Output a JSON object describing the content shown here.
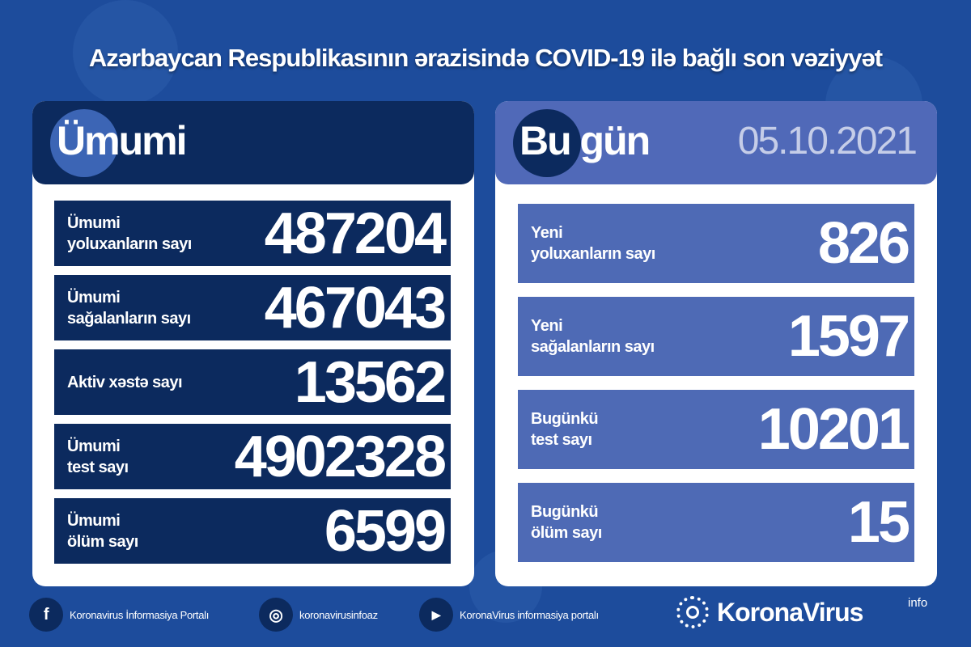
{
  "title": "Azərbaycan Respublikasının ərazisində COVID-19 ilə bağlı son vəziyyət",
  "total": {
    "heading": "Ümumi",
    "rows": [
      {
        "label1": "Ümumi",
        "label2": "yoluxanların sayı",
        "value": "487204"
      },
      {
        "label1": "Ümumi",
        "label2": "sağalanların sayı",
        "value": "467043"
      },
      {
        "label1": "Aktiv xəstə sayı",
        "label2": "",
        "value": "13562"
      },
      {
        "label1": "Ümumi",
        "label2": "test sayı",
        "value": "4902328"
      },
      {
        "label1": "Ümumi",
        "label2": "ölüm sayı",
        "value": "6599"
      }
    ]
  },
  "today": {
    "heading": "Bu gün",
    "date": "05.10.2021",
    "rows": [
      {
        "label1": "Yeni",
        "label2": "yoluxanların sayı",
        "value": "826"
      },
      {
        "label1": "Yeni",
        "label2": "sağalanların sayı",
        "value": "1597"
      },
      {
        "label1": "Bugünkü",
        "label2": "test sayı",
        "value": "10201"
      },
      {
        "label1": "Bugünkü",
        "label2": "ölüm sayı",
        "value": "15"
      }
    ]
  },
  "footer": {
    "facebook": "Koronavirus İnformasiya Portalı",
    "instagram": "koronavirusinfoaz",
    "youtube": "KoronaVirus informasiya portalı",
    "brand": "KoronaVirus",
    "brand_sup": "info"
  },
  "colors": {
    "background": "#1d4c9c",
    "navy": "#0c2a5e",
    "today_blue": "#5069b8"
  }
}
